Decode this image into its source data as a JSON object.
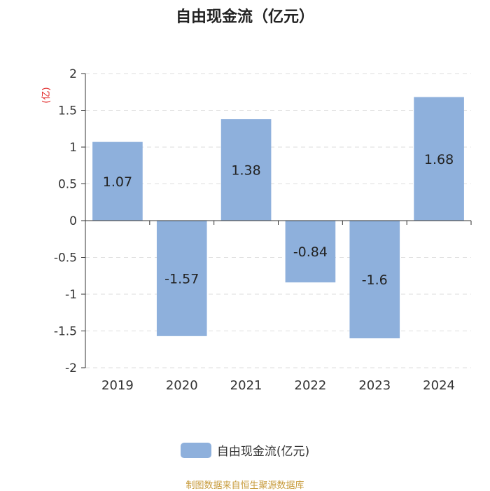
{
  "chart_data": {
    "type": "bar",
    "title": "自由现金流（亿元）",
    "ylabel": "(亿)",
    "categories": [
      "2019",
      "2020",
      "2021",
      "2022",
      "2023",
      "2024"
    ],
    "series": [
      {
        "name": "自由现金流(亿元)",
        "values": [
          1.07,
          -1.57,
          1.38,
          -0.84,
          -1.6,
          1.68
        ]
      }
    ],
    "data_labels": [
      "1.07",
      "-1.57",
      "1.38",
      "-0.84",
      "-1.6",
      "1.68"
    ],
    "yticks": [
      "2",
      "1.5",
      "1",
      "0.5",
      "0",
      "-0.5",
      "-1",
      "-1.5",
      "-2"
    ],
    "ylim": [
      -2,
      2
    ],
    "grid": true,
    "legend_position": "bottom",
    "colors": {
      "bar": "#8eb0dc",
      "axis": "#333333",
      "grid": "#dddddd",
      "ylabel": "#e02020"
    }
  },
  "footer": {
    "source": "制图数据来自恒生聚源数据库"
  }
}
